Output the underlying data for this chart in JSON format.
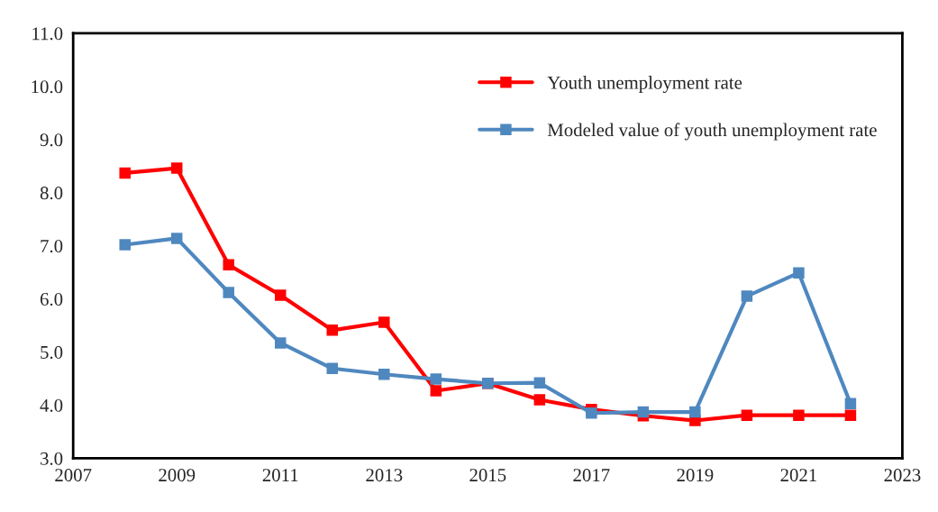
{
  "chart_data": {
    "type": "line",
    "x": [
      2008,
      2009,
      2010,
      2011,
      2012,
      2013,
      2014,
      2015,
      2016,
      2017,
      2018,
      2019,
      2020,
      2021,
      2022
    ],
    "series": [
      {
        "name": "Youth unemployment rate",
        "color": "#ff0000",
        "values": [
          8.37,
          8.46,
          6.64,
          6.07,
          5.41,
          5.56,
          4.27,
          4.41,
          4.1,
          3.92,
          3.8,
          3.71,
          3.81,
          3.81,
          3.81
        ]
      },
      {
        "name": "Modeled value of youth unemployment rate",
        "color": "#4f88bf",
        "values": [
          7.02,
          7.14,
          6.12,
          5.17,
          4.69,
          4.58,
          4.49,
          4.41,
          4.42,
          3.85,
          3.87,
          3.87,
          6.05,
          6.49,
          4.03
        ]
      }
    ],
    "xlim": [
      2007,
      2023
    ],
    "xticks": [
      2007,
      2009,
      2011,
      2013,
      2015,
      2017,
      2019,
      2021,
      2023
    ],
    "ylim": [
      3.0,
      11.0
    ],
    "yticks": [
      {
        "value": 3,
        "label": "3.0"
      },
      {
        "value": 4,
        "label": "4.0"
      },
      {
        "value": 5,
        "label": "5.0"
      },
      {
        "value": 6,
        "label": "6.0"
      },
      {
        "value": 7,
        "label": "7.0"
      },
      {
        "value": 8,
        "label": "8.0"
      },
      {
        "value": 9,
        "label": "9.0"
      },
      {
        "value": 10,
        "label": "10.0"
      },
      {
        "value": 11,
        "label": "11.0"
      }
    ],
    "grid": false,
    "legend": "top right",
    "marker": "square",
    "line_style": "solid"
  }
}
